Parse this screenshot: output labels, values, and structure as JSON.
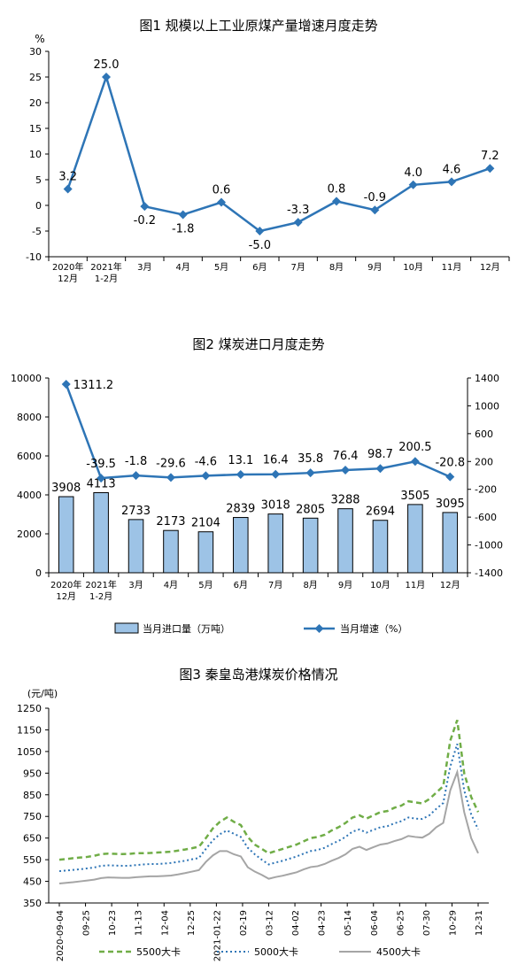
{
  "charts": [
    {
      "title": "图1 规模以上工业原煤产量增速月度走势",
      "unit": "%",
      "type": "line",
      "categories": [
        [
          "2020年",
          "12月"
        ],
        [
          "2021年",
          "1-2月"
        ],
        [
          "3月"
        ],
        [
          "4月"
        ],
        [
          "5月"
        ],
        [
          "6月"
        ],
        [
          "7月"
        ],
        [
          "8月"
        ],
        [
          "9月"
        ],
        [
          "10月"
        ],
        [
          "11月"
        ],
        [
          "12月"
        ]
      ],
      "values": [
        3.2,
        25.0,
        -0.2,
        -1.8,
        0.6,
        -5.0,
        -3.3,
        0.8,
        -0.9,
        4.0,
        4.6,
        7.2
      ],
      "labels": [
        "3.2",
        "25.0",
        "-0.2",
        "-1.8",
        "0.6",
        "-5.0",
        "-3.3",
        "0.8",
        "-0.9",
        "4.0",
        "4.6",
        "7.2"
      ],
      "ylim": [
        -10,
        30
      ],
      "yticks": [
        "-10",
        "-5",
        "0",
        "5",
        "10",
        "15",
        "20",
        "25",
        "30"
      ],
      "color": "#2e75b6"
    },
    {
      "title": "图2 煤炭进口月度走势",
      "type": "bar+line",
      "categories": [
        [
          "2020年",
          "12月"
        ],
        [
          "2021年",
          "1-2月"
        ],
        [
          "3月"
        ],
        [
          "4月"
        ],
        [
          "5月"
        ],
        [
          "6月"
        ],
        [
          "7月"
        ],
        [
          "8月"
        ],
        [
          "9月"
        ],
        [
          "10月"
        ],
        [
          "11月"
        ],
        [
          "12月"
        ]
      ],
      "series": [
        {
          "name": "当月进口量（万吨）",
          "type": "bar",
          "axis": "left",
          "values": [
            3908,
            4113,
            2733,
            2173,
            2104,
            2839,
            3018,
            2805,
            3288,
            2694,
            3505,
            3095
          ],
          "labels": [
            "3908",
            "4113",
            "2733",
            "2173",
            "2104",
            "2839",
            "3018",
            "2805",
            "3288",
            "2694",
            "3505",
            "3095"
          ]
        },
        {
          "name": "当月增速（%）",
          "type": "line",
          "axis": "right",
          "values": [
            1311.2,
            -39.5,
            -1.8,
            -29.6,
            -4.6,
            13.1,
            16.4,
            35.8,
            76.4,
            98.7,
            200.5,
            -20.8
          ],
          "labels": [
            "1311.2",
            "-39.5",
            "-1.8",
            "-29.6",
            "-4.6",
            "13.1",
            "16.4",
            "35.8",
            "76.4",
            "98.7",
            "200.5",
            "-20.8"
          ]
        }
      ],
      "ylim_left": [
        0,
        10000
      ],
      "yticks_left": [
        "0",
        "2000",
        "4000",
        "6000",
        "8000",
        "10000"
      ],
      "ylim_right": [
        -1400,
        1400
      ],
      "yticks_right": [
        "-1400",
        "-1000",
        "-600",
        "-200",
        "200",
        "600",
        "1000",
        "1400"
      ],
      "bar_fill": "#9dc3e6",
      "bar_stroke": "#000000",
      "line_color": "#2e75b6"
    },
    {
      "title": "图3 秦皇岛港煤炭价格情况",
      "unit": "(元/吨)",
      "type": "line",
      "ylim": [
        350,
        1250
      ],
      "yticks": [
        "350",
        "450",
        "550",
        "650",
        "750",
        "850",
        "950",
        "1050",
        "1150",
        "1250"
      ],
      "xticks": [
        "2020-09-04",
        "09-25",
        "10-23",
        "11-13",
        "12-04",
        "12-25",
        "2021-01-22",
        "02-19",
        "03-12",
        "04-02",
        "04-23",
        "05-14",
        "06-04",
        "06-25",
        "07-30",
        "10-29",
        "12-31"
      ],
      "series": [
        {
          "name": "5500大卡",
          "color": "#70ad47",
          "dash": "6,4",
          "values": [
            550,
            553,
            557,
            560,
            563,
            568,
            576,
            578,
            577,
            576,
            577,
            580,
            580,
            581,
            583,
            585,
            587,
            592,
            597,
            603,
            610,
            650,
            695,
            725,
            745,
            725,
            710,
            655,
            620,
            600,
            580,
            590,
            600,
            610,
            620,
            635,
            650,
            655,
            665,
            685,
            700,
            720,
            745,
            755,
            740,
            755,
            770,
            775,
            790,
            800,
            820,
            815,
            810,
            830,
            860,
            890,
            1100,
            1195,
            950,
            840,
            770
          ]
        },
        {
          "name": "5000大卡",
          "color": "#2e75b6",
          "dash": "2,3",
          "values": [
            497,
            500,
            503,
            506,
            510,
            514,
            522,
            524,
            523,
            522,
            522,
            525,
            528,
            530,
            530,
            532,
            535,
            540,
            545,
            552,
            558,
            600,
            640,
            668,
            685,
            670,
            655,
            605,
            575,
            550,
            528,
            537,
            545,
            555,
            565,
            578,
            590,
            595,
            605,
            622,
            637,
            655,
            680,
            690,
            675,
            688,
            700,
            705,
            718,
            728,
            745,
            740,
            738,
            755,
            785,
            812,
            980,
            1085,
            870,
            760,
            690
          ]
        },
        {
          "name": "4500大卡",
          "color": "#a5a5a5",
          "dash": "",
          "values": [
            440,
            443,
            446,
            450,
            454,
            458,
            465,
            468,
            467,
            466,
            466,
            469,
            471,
            473,
            473,
            475,
            477,
            482,
            488,
            495,
            502,
            540,
            570,
            590,
            590,
            575,
            565,
            515,
            495,
            480,
            462,
            470,
            476,
            484,
            492,
            505,
            516,
            520,
            530,
            545,
            558,
            575,
            600,
            610,
            595,
            608,
            620,
            625,
            636,
            645,
            660,
            655,
            652,
            670,
            700,
            720,
            870,
            955,
            770,
            650,
            580
          ]
        }
      ]
    }
  ]
}
